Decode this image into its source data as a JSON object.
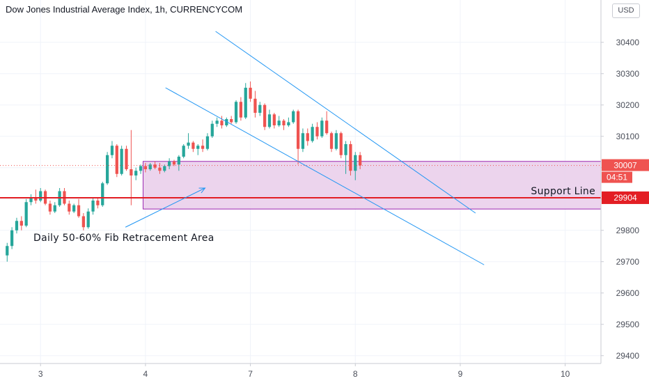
{
  "header": {
    "title": "Dow Jones Industrial Average Index, 1h, CURRENCYCOM",
    "currency_button": "USD"
  },
  "colors": {
    "up": "#26a69a",
    "down": "#ef5350",
    "support": "#e31e24",
    "zone_fill": "#e9cdea",
    "zone_border": "#9c27b0",
    "channel": "#2196f3",
    "grid": "#f0f3fa"
  },
  "chart_data": {
    "type": "candlestick",
    "title": "Dow Jones Industrial Average Index, 1h, CURRENCYCOM",
    "y_range": [
      29375,
      30535
    ],
    "y_ticks": [
      30400,
      30300,
      30200,
      30100,
      30000,
      29900,
      29800,
      29700,
      29600,
      29500,
      29400
    ],
    "y_tick_labels": [
      "30400",
      "30300",
      "30200",
      "30100",
      "30000",
      "29900",
      "29800",
      "29700",
      "29600",
      "29500",
      "29400"
    ],
    "x_ticks": [
      {
        "index": 7,
        "label": "3"
      },
      {
        "index": 29,
        "label": "4"
      },
      {
        "index": 51,
        "label": "7"
      },
      {
        "index": 73,
        "label": "8"
      },
      {
        "index": 95,
        "label": "9"
      },
      {
        "index": 117,
        "label": "10"
      }
    ],
    "index_range": [
      -1.5,
      124.5
    ],
    "current_price": {
      "value": 30007,
      "label": "30007",
      "countdown": "04:51"
    },
    "support": {
      "value": 29904,
      "label": "29904",
      "text": "Support Line"
    },
    "fib_zone": {
      "from_index": 28.5,
      "to_index": 124.5,
      "top": 30020,
      "bottom": 29868,
      "label": "Daily 50-60% Fib Retracement Area"
    },
    "fib_arrow": {
      "from": [
        24.8,
        29810
      ],
      "to": [
        41.5,
        29935
      ]
    },
    "channel_upper": {
      "from": [
        43.7,
        30435
      ],
      "to": [
        98.2,
        29855
      ]
    },
    "channel_lower": {
      "from": [
        33.2,
        30255
      ],
      "to": [
        100,
        29690
      ]
    },
    "candles": [
      [
        29720,
        29760,
        29700,
        29750
      ],
      [
        29750,
        29810,
        29740,
        29800
      ],
      [
        29800,
        29840,
        29790,
        29830
      ],
      [
        29830,
        29845,
        29800,
        29815
      ],
      [
        29815,
        29900,
        29810,
        29890
      ],
      [
        29890,
        29915,
        29880,
        29905
      ],
      [
        29905,
        29930,
        29885,
        29895
      ],
      [
        29895,
        29935,
        29890,
        29925
      ],
      [
        29925,
        29930,
        29880,
        29885
      ],
      [
        29885,
        29895,
        29850,
        29860
      ],
      [
        29860,
        29890,
        29855,
        29880
      ],
      [
        29880,
        29935,
        29875,
        29925
      ],
      [
        29925,
        29935,
        29880,
        29885
      ],
      [
        29885,
        29895,
        29850,
        29860
      ],
      [
        29860,
        29885,
        29855,
        29880
      ],
      [
        29880,
        29900,
        29840,
        29845
      ],
      [
        29845,
        29855,
        29800,
        29810
      ],
      [
        29810,
        29870,
        29805,
        29860
      ],
      [
        29860,
        29905,
        29850,
        29895
      ],
      [
        29895,
        29905,
        29870,
        29880
      ],
      [
        29880,
        29955,
        29875,
        29950
      ],
      [
        29950,
        30050,
        29945,
        30040
      ],
      [
        30040,
        30085,
        30030,
        30070
      ],
      [
        30070,
        30075,
        29970,
        29980
      ],
      [
        29980,
        30070,
        29975,
        30060
      ],
      [
        30060,
        30070,
        29990,
        29995
      ],
      [
        29995,
        30120,
        29880,
        29975
      ],
      [
        29975,
        30000,
        29960,
        29990
      ],
      [
        29990,
        30010,
        29980,
        30005
      ],
      [
        30005,
        30015,
        29985,
        29995
      ],
      [
        29995,
        30015,
        29990,
        30010
      ],
      [
        30010,
        30020,
        29995,
        30000
      ],
      [
        30000,
        30015,
        29980,
        29990
      ],
      [
        29990,
        30010,
        29985,
        30005
      ],
      [
        30005,
        30030,
        29995,
        30020
      ],
      [
        30020,
        30025,
        30005,
        30010
      ],
      [
        30010,
        30040,
        29990,
        30035
      ],
      [
        30035,
        30075,
        30030,
        30070
      ],
      [
        30070,
        30110,
        30060,
        30080
      ],
      [
        30080,
        30085,
        30050,
        30060
      ],
      [
        30060,
        30075,
        30040,
        30070
      ],
      [
        30070,
        30090,
        30050,
        30060
      ],
      [
        30060,
        30110,
        30055,
        30100
      ],
      [
        30100,
        30150,
        30095,
        30140
      ],
      [
        30140,
        30160,
        30130,
        30150
      ],
      [
        30150,
        30165,
        30125,
        30135
      ],
      [
        30135,
        30160,
        30130,
        30155
      ],
      [
        30155,
        30165,
        30140,
        30145
      ],
      [
        30145,
        30215,
        30140,
        30210
      ],
      [
        30210,
        30225,
        30150,
        30160
      ],
      [
        30160,
        30270,
        30155,
        30255
      ],
      [
        30255,
        30275,
        30210,
        30220
      ],
      [
        30220,
        30245,
        30160,
        30175
      ],
      [
        30175,
        30210,
        30165,
        30200
      ],
      [
        30200,
        30205,
        30120,
        30130
      ],
      [
        30130,
        30185,
        30125,
        30170
      ],
      [
        30170,
        30175,
        30125,
        30135
      ],
      [
        30135,
        30165,
        30130,
        30150
      ],
      [
        30150,
        30155,
        30120,
        30135
      ],
      [
        30135,
        30160,
        30130,
        30145
      ],
      [
        30145,
        30185,
        30140,
        30180
      ],
      [
        30180,
        30185,
        30010,
        30060
      ],
      [
        30060,
        30125,
        30050,
        30110
      ],
      [
        30110,
        30125,
        30070,
        30085
      ],
      [
        30085,
        30140,
        30080,
        30130
      ],
      [
        30130,
        30145,
        30090,
        30100
      ],
      [
        30100,
        30160,
        30095,
        30150
      ],
      [
        30150,
        30180,
        30105,
        30110
      ],
      [
        30110,
        30115,
        30050,
        30060
      ],
      [
        30060,
        30120,
        30055,
        30110
      ],
      [
        30110,
        30115,
        30030,
        30040
      ],
      [
        30040,
        30085,
        29980,
        30075
      ],
      [
        30075,
        30085,
        29975,
        29990
      ],
      [
        29990,
        30050,
        29960,
        30040
      ],
      [
        30040,
        30050,
        29995,
        30007
      ]
    ]
  }
}
